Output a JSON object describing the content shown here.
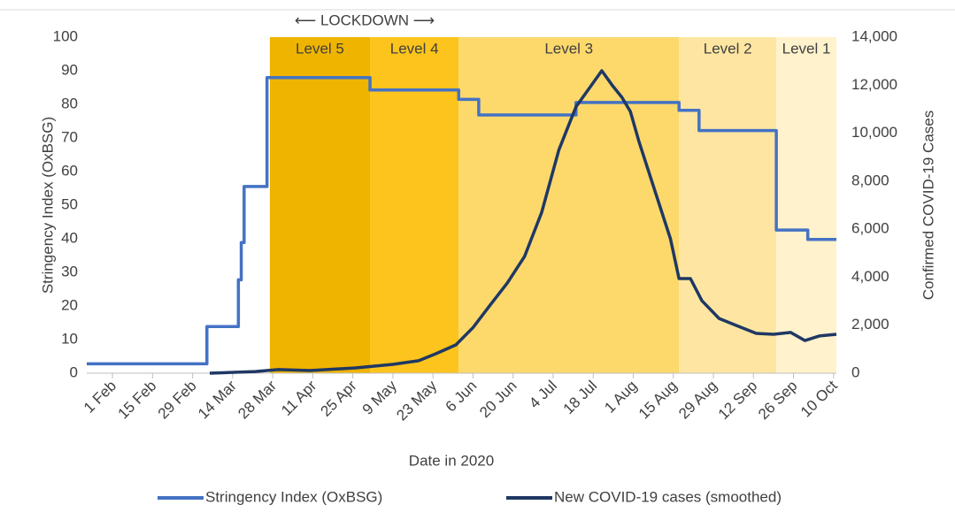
{
  "chart_data": {
    "type": "line",
    "annotation": "⟵ LOCKDOWN ⟶",
    "xlabel": "Date in 2020",
    "ylabel": "Stringency Index (OxBSG)",
    "y2label": "Confirmed COVID-19 Cases",
    "xlim": [
      "2020-01-23",
      "2020-10-11"
    ],
    "xticks": [
      {
        "value": "2020-02-01",
        "label": "1 Feb"
      },
      {
        "value": "2020-02-15",
        "label": "15 Feb"
      },
      {
        "value": "2020-02-29",
        "label": "29 Feb"
      },
      {
        "value": "2020-03-14",
        "label": "14 Mar"
      },
      {
        "value": "2020-03-28",
        "label": "28 Mar"
      },
      {
        "value": "2020-04-11",
        "label": "11 Apr"
      },
      {
        "value": "2020-04-25",
        "label": "25 Apr"
      },
      {
        "value": "2020-05-09",
        "label": "9 May"
      },
      {
        "value": "2020-05-23",
        "label": "23 May"
      },
      {
        "value": "2020-06-06",
        "label": "6 Jun"
      },
      {
        "value": "2020-06-20",
        "label": "20 Jun"
      },
      {
        "value": "2020-07-04",
        "label": "4 Jul"
      },
      {
        "value": "2020-07-18",
        "label": "18 Jul"
      },
      {
        "value": "2020-08-01",
        "label": "1 Aug"
      },
      {
        "value": "2020-08-15",
        "label": "15 Aug"
      },
      {
        "value": "2020-08-29",
        "label": "29 Aug"
      },
      {
        "value": "2020-09-12",
        "label": "12 Sep"
      },
      {
        "value": "2020-09-26",
        "label": "26 Sep"
      },
      {
        "value": "2020-10-10",
        "label": "10 Oct"
      }
    ],
    "ylim": [
      0,
      100
    ],
    "yticks": [
      0,
      10,
      20,
      30,
      40,
      50,
      60,
      70,
      80,
      90,
      100
    ],
    "y2lim": [
      0,
      14000
    ],
    "y2ticks": [
      0,
      {
        "value": 2000,
        "label": "2,000"
      },
      {
        "value": 4000,
        "label": "4,000"
      },
      {
        "value": 6000,
        "label": "6,000"
      },
      {
        "value": 8000,
        "label": "8,000"
      },
      {
        "value": 10000,
        "label": "10,000"
      },
      {
        "value": 12000,
        "label": "12,000"
      },
      {
        "value": 14000,
        "label": "14,000"
      }
    ],
    "grid": false,
    "legend": "bottom",
    "regions": [
      {
        "label": "Level 5",
        "start": "2020-03-27",
        "end": "2020-05-01",
        "color": "#efb400"
      },
      {
        "label": "Level 4",
        "start": "2020-05-01",
        "end": "2020-06-01",
        "color": "#fcc41c"
      },
      {
        "label": "Level 3",
        "start": "2020-06-01",
        "end": "2020-08-17",
        "color": "#fdd96c"
      },
      {
        "label": "Level 2",
        "start": "2020-08-17",
        "end": "2020-09-20",
        "color": "#fee6a2"
      },
      {
        "label": "Level 1",
        "start": "2020-09-20",
        "end": "2020-10-11",
        "color": "#fff2cc"
      }
    ],
    "series": [
      {
        "name": "Stringency Index (OxBSG)",
        "color": "#4472c4",
        "step": "after",
        "x": [
          "2020-01-23",
          "2020-03-05",
          "2020-03-16",
          "2020-03-17",
          "2020-03-18",
          "2020-03-26",
          "2020-05-01",
          "2020-06-01",
          "2020-06-08",
          "2020-07-12",
          "2020-08-17",
          "2020-08-24",
          "2020-09-20",
          "2020-10-01",
          "2020-10-11"
        ],
        "values": [
          2.78,
          13.89,
          27.78,
          38.89,
          55.56,
          87.96,
          84.26,
          81.48,
          76.85,
          80.56,
          78.24,
          72.22,
          42.59,
          39.81,
          39.81
        ]
      },
      {
        "name": "New COVID-19 cases (smoothed)",
        "color": "#1f3864",
        "axis": "y2",
        "x": [
          "2020-03-06",
          "2020-03-22",
          "2020-03-30",
          "2020-04-10",
          "2020-04-26",
          "2020-05-09",
          "2020-05-18",
          "2020-05-24",
          "2020-05-31",
          "2020-06-06",
          "2020-06-12",
          "2020-06-18",
          "2020-06-24",
          "2020-06-30",
          "2020-07-06",
          "2020-07-12",
          "2020-07-21",
          "2020-07-25",
          "2020-07-28",
          "2020-07-31",
          "2020-08-03",
          "2020-08-09",
          "2020-08-14",
          "2020-08-17",
          "2020-08-21",
          "2020-08-25",
          "2020-08-31",
          "2020-09-06",
          "2020-09-13",
          "2020-09-19",
          "2020-09-25",
          "2020-09-30",
          "2020-10-05",
          "2020-10-11"
        ],
        "values": [
          0,
          70,
          150,
          110,
          220,
          370,
          520,
          810,
          1180,
          1900,
          2840,
          3760,
          4860,
          6700,
          9300,
          11100,
          12600,
          11940,
          11500,
          10900,
          9650,
          7440,
          5600,
          3940,
          3940,
          3020,
          2280,
          1990,
          1660,
          1620,
          1700,
          1360,
          1550,
          1620
        ]
      }
    ]
  }
}
